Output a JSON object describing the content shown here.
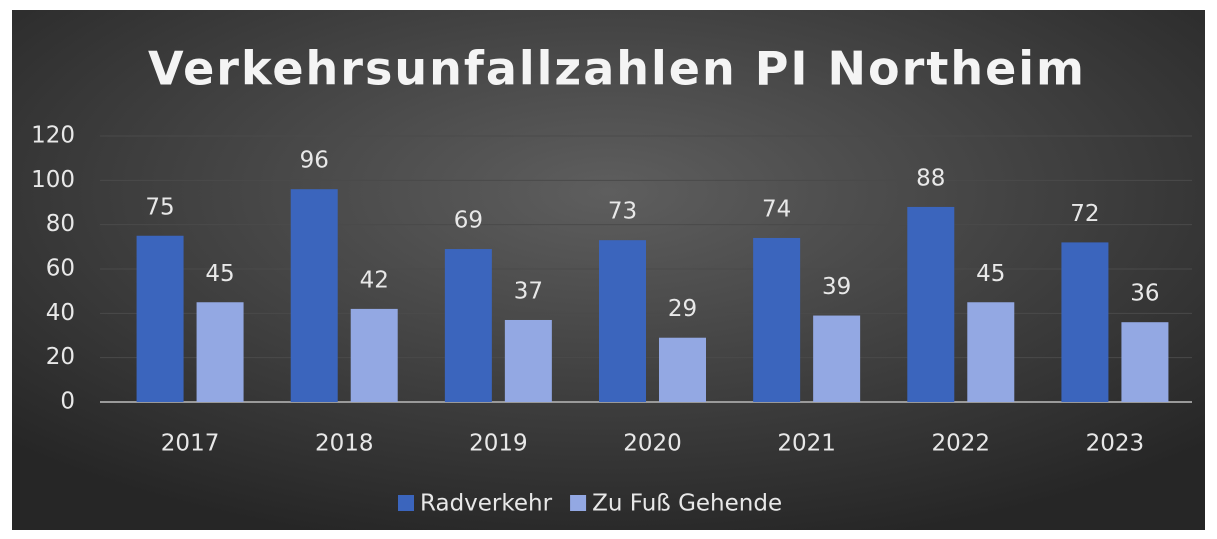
{
  "chart_data": {
    "type": "bar",
    "title": "Verkehrsunfallzahlen PI Northeim",
    "categories": [
      "2017",
      "2018",
      "2019",
      "2020",
      "2021",
      "2022",
      "2023"
    ],
    "series": [
      {
        "name": "Radverkehr",
        "color": "#3b65bd",
        "values": [
          75,
          96,
          69,
          73,
          74,
          88,
          72
        ]
      },
      {
        "name": "Zu Fuß Gehende",
        "color": "#93a8e3",
        "values": [
          45,
          42,
          37,
          29,
          39,
          45,
          36
        ]
      }
    ],
    "ylim": [
      0,
      120
    ],
    "yticks": [
      0,
      20,
      40,
      60,
      80,
      100,
      120
    ],
    "grid": true,
    "legend": "bottom"
  }
}
